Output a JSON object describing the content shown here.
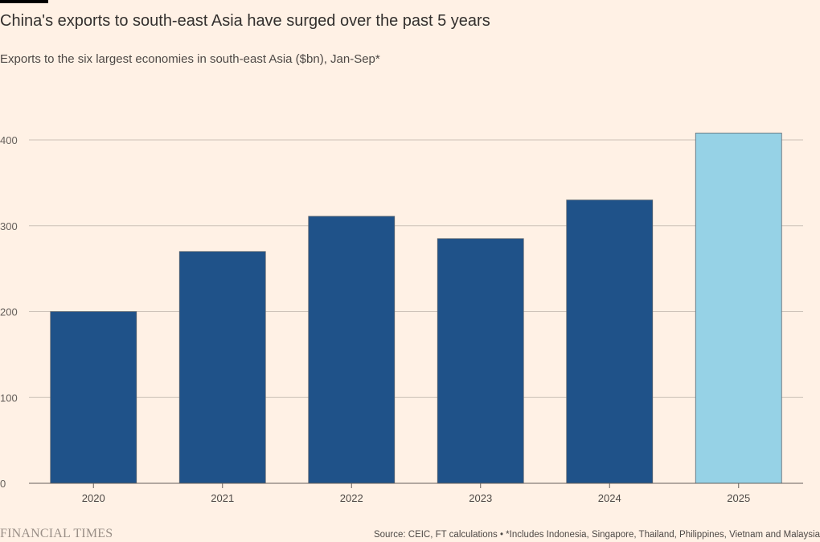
{
  "chart_data": {
    "type": "bar",
    "title": "China's exports to south-east Asia have surged over the past 5 years",
    "subtitle": "Exports to the six largest economies in south-east Asia ($bn), Jan-Sep*",
    "xlabel": "",
    "ylabel": "",
    "categories": [
      "2020",
      "2021",
      "2022",
      "2023",
      "2024",
      "2025"
    ],
    "values": [
      200,
      270,
      311,
      285,
      330,
      408
    ],
    "bar_colors": [
      "#1f5289",
      "#1f5289",
      "#1f5289",
      "#1f5289",
      "#1f5289",
      "#96d2e6"
    ],
    "ylim": [
      0,
      440
    ],
    "yticks": [
      0,
      100,
      200,
      300,
      400
    ],
    "grid": true,
    "legend": "none"
  },
  "colors": {
    "background": "#fff1e5",
    "primary_bar": "#1f5289",
    "highlight_bar": "#96d2e6",
    "gridline": "#ccc1b7",
    "axis": "#66605c"
  },
  "footer": {
    "brand": "FINANCIAL TIMES",
    "source": "Source: CEIC, FT calculations • *Includes Indonesia, Singapore, Thailand, Philippines, Vietnam and Malaysia"
  }
}
